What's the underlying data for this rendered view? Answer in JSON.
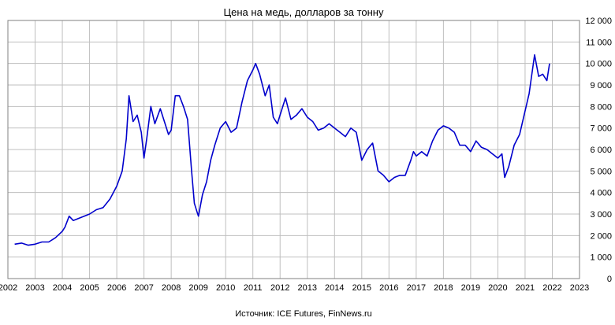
{
  "chart_data": {
    "type": "line",
    "title": "Цена на медь, долларов за тонну",
    "source": "Источник: ICE Futures, FinNews.ru",
    "xlabel": "",
    "ylabel": "",
    "xlim": [
      2002,
      2023
    ],
    "ylim": [
      0,
      12000
    ],
    "grid": true,
    "x_ticks": [
      "2002",
      "2003",
      "2004",
      "2005",
      "2006",
      "2007",
      "2008",
      "2009",
      "2010",
      "2011",
      "2012",
      "2013",
      "2014",
      "2015",
      "2016",
      "2017",
      "2018",
      "2019",
      "2020",
      "2021",
      "2022",
      "2023"
    ],
    "y_ticks": [
      "0",
      "1 000",
      "2 000",
      "3 000",
      "4 000",
      "5 000",
      "6 000",
      "7 000",
      "8 000",
      "9 000",
      "10 000",
      "11 000",
      "12 000"
    ],
    "series_color": "#0000CC",
    "series": [
      {
        "x": [
          2002.25,
          2002.5,
          2002.75,
          2003.0,
          2003.25,
          2003.5,
          2003.75,
          2004.0,
          2004.1,
          2004.25,
          2004.4,
          2004.6,
          2004.8,
          2005.0,
          2005.25,
          2005.5,
          2005.75,
          2006.0,
          2006.2,
          2006.35,
          2006.45,
          2006.6,
          2006.75,
          2006.9,
          2007.0,
          2007.1,
          2007.25,
          2007.4,
          2007.6,
          2007.75,
          2007.9,
          2008.0,
          2008.15,
          2008.3,
          2008.45,
          2008.6,
          2008.75,
          2008.85,
          2008.95,
          2009.0,
          2009.15,
          2009.3,
          2009.45,
          2009.6,
          2009.8,
          2010.0,
          2010.2,
          2010.4,
          2010.6,
          2010.8,
          2011.0,
          2011.1,
          2011.25,
          2011.45,
          2011.6,
          2011.75,
          2011.9,
          2012.0,
          2012.2,
          2012.4,
          2012.6,
          2012.8,
          2013.0,
          2013.2,
          2013.4,
          2013.6,
          2013.8,
          2014.0,
          2014.2,
          2014.4,
          2014.6,
          2014.8,
          2015.0,
          2015.2,
          2015.4,
          2015.6,
          2015.8,
          2016.0,
          2016.2,
          2016.4,
          2016.6,
          2016.8,
          2016.9,
          2017.0,
          2017.2,
          2017.4,
          2017.6,
          2017.8,
          2018.0,
          2018.2,
          2018.4,
          2018.6,
          2018.8,
          2019.0,
          2019.2,
          2019.4,
          2019.6,
          2019.8,
          2020.0,
          2020.15,
          2020.25,
          2020.4,
          2020.6,
          2020.8,
          2021.0,
          2021.15,
          2021.35,
          2021.5,
          2021.65,
          2021.8,
          2021.9
        ],
        "values": [
          1600,
          1650,
          1550,
          1600,
          1700,
          1700,
          1900,
          2200,
          2400,
          2900,
          2700,
          2800,
          2900,
          3000,
          3200,
          3300,
          3700,
          4300,
          5000,
          6500,
          8500,
          7300,
          7600,
          6800,
          5600,
          6500,
          8000,
          7200,
          7900,
          7300,
          6700,
          6900,
          8500,
          8500,
          8000,
          7400,
          5000,
          3500,
          3100,
          2900,
          3900,
          4500,
          5500,
          6200,
          7000,
          7300,
          6800,
          7000,
          8200,
          9200,
          9700,
          10000,
          9500,
          8500,
          9000,
          7500,
          7200,
          7600,
          8400,
          7400,
          7600,
          7900,
          7500,
          7300,
          6900,
          7000,
          7200,
          7000,
          6800,
          6600,
          7000,
          6800,
          5500,
          6000,
          6300,
          5000,
          4800,
          4500,
          4700,
          4800,
          4800,
          5500,
          5900,
          5700,
          5900,
          5700,
          6400,
          6900,
          7100,
          7000,
          6800,
          6200,
          6200,
          5900,
          6400,
          6100,
          6000,
          5800,
          5600,
          5800,
          4700,
          5200,
          6200,
          6700,
          7800,
          8600,
          10400,
          9400,
          9500,
          9200,
          10000
        ]
      }
    ]
  }
}
